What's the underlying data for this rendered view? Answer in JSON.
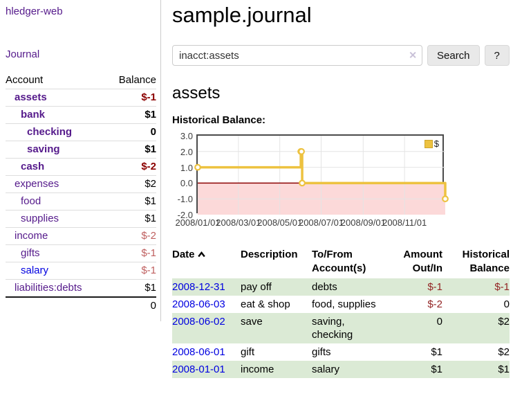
{
  "app": {
    "title": "hledger-web"
  },
  "sidebar": {
    "journal_link": "Journal",
    "accounts_table": {
      "account_header": "Account",
      "balance_header": "Balance",
      "rows": [
        {
          "name": "assets",
          "balance": "$-1",
          "level": 1,
          "bold": true,
          "negative": true,
          "unvisited": false
        },
        {
          "name": "bank",
          "balance": "$1",
          "level": 2,
          "bold": true,
          "negative": false,
          "unvisited": false
        },
        {
          "name": "checking",
          "balance": "0",
          "level": 3,
          "bold": true,
          "negative": false,
          "unvisited": false
        },
        {
          "name": "saving",
          "balance": "$1",
          "level": 3,
          "bold": true,
          "negative": false,
          "unvisited": false
        },
        {
          "name": "cash",
          "balance": "$-2",
          "level": 2,
          "bold": true,
          "negative": true,
          "unvisited": false
        },
        {
          "name": "expenses",
          "balance": "$2",
          "level": 1,
          "bold": false,
          "negative": false,
          "unvisited": false
        },
        {
          "name": "food",
          "balance": "$1",
          "level": 2,
          "bold": false,
          "negative": false,
          "unvisited": false
        },
        {
          "name": "supplies",
          "balance": "$1",
          "level": 2,
          "bold": false,
          "negative": false,
          "unvisited": false
        },
        {
          "name": "income",
          "balance": "$-2",
          "level": 1,
          "bold": false,
          "negative": true,
          "unvisited": false
        },
        {
          "name": "gifts",
          "balance": "$-1",
          "level": 2,
          "bold": false,
          "negative": true,
          "unvisited": false
        },
        {
          "name": "salary",
          "balance": "$-1",
          "level": 2,
          "bold": false,
          "negative": true,
          "unvisited": true
        },
        {
          "name": "liabilities:debts",
          "balance": "$1",
          "level": 1,
          "bold": false,
          "negative": false,
          "unvisited": false
        }
      ],
      "total": "0"
    }
  },
  "main": {
    "title": "sample.journal",
    "search": {
      "value": "inacct:assets",
      "clear_icon": "✕",
      "button_label": "Search",
      "help_label": "?"
    },
    "account_heading": "assets"
  },
  "register": {
    "headers": {
      "date": "Date",
      "sort_icon": "chevron-up",
      "description": "Description",
      "accounts": "To/From Account(s)",
      "amount": "Amount Out/In",
      "balance": "Historical Balance"
    },
    "rows": [
      {
        "date": "2008-12-31",
        "description": "pay off",
        "accounts": "debts",
        "amount": "$-1",
        "balance": "$-1",
        "amount_negative": true,
        "balance_negative": true
      },
      {
        "date": "2008-06-03",
        "description": "eat & shop",
        "accounts": "food, supplies",
        "amount": "$-2",
        "balance": "0",
        "amount_negative": true,
        "balance_negative": false
      },
      {
        "date": "2008-06-02",
        "description": "save",
        "accounts": "saving, checking",
        "amount": "0",
        "balance": "$2",
        "amount_negative": false,
        "balance_negative": false
      },
      {
        "date": "2008-06-01",
        "description": "gift",
        "accounts": "gifts",
        "amount": "$1",
        "balance": "$2",
        "amount_negative": false,
        "balance_negative": false
      },
      {
        "date": "2008-01-01",
        "description": "income",
        "accounts": "salary",
        "amount": "$1",
        "balance": "$1",
        "amount_negative": false,
        "balance_negative": false
      }
    ]
  },
  "chart_data": {
    "type": "line",
    "title": "Historical Balance:",
    "step": true,
    "x_range": [
      "2008-01-01",
      "2008-12-31"
    ],
    "ylim": [
      -2.0,
      3.0
    ],
    "yticks": [
      "3.0",
      "2.0",
      "1.0",
      "0.0",
      "-1.0",
      "-2.0"
    ],
    "xticks": [
      "2008/01/01",
      "2008/03/01",
      "2008/05/01",
      "2008/07/01",
      "2008/09/01",
      "2008/11/01"
    ],
    "series": [
      {
        "name": "$",
        "color": "#edc240",
        "points": [
          [
            "2008-01-01",
            1
          ],
          [
            "2008-06-01",
            2
          ],
          [
            "2008-06-02",
            2
          ],
          [
            "2008-06-03",
            0
          ],
          [
            "2008-12-31",
            -1
          ]
        ]
      }
    ],
    "legend_position": "top-right",
    "grid": true,
    "negative_region_color": "#fcd9d9",
    "zero_line_color": "#8b0000"
  },
  "colors": {
    "link_purple": "#551a8b",
    "link_blue": "#0000e0",
    "negative_bold": "#8b0000",
    "negative_table": "#932525",
    "negative_light": "#bf5f5f",
    "row_stripe_green": "#dbead5",
    "chart_line": "#edc240",
    "chart_negative_fill": "#fcd9d9",
    "chart_zero_line": "#8b0000",
    "chart_border": "#4a4a4a"
  }
}
